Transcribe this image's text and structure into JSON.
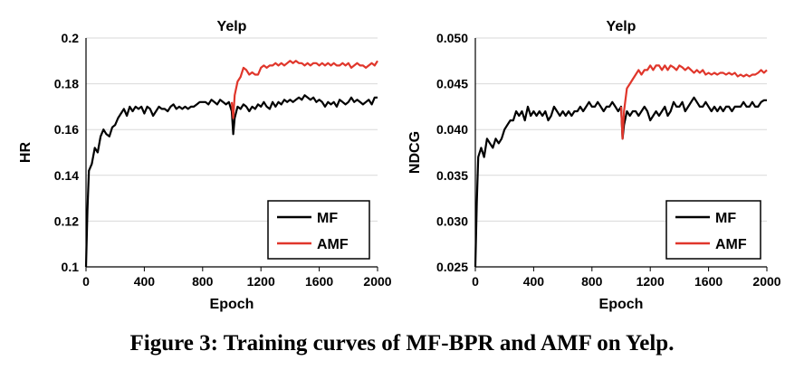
{
  "caption": "Figure 3: Training curves of MF-BPR and AMF on Yelp.",
  "colors": {
    "MF": "#000000",
    "AMF": "#e0362b",
    "grid": "#d9d9d9"
  },
  "chart_data": [
    {
      "type": "line",
      "title": "Yelp",
      "xlabel": "Epoch",
      "ylabel": "HR",
      "xlim": [
        0,
        2000
      ],
      "ylim": [
        0.1,
        0.2
      ],
      "xticks": [
        "0",
        "400",
        "800",
        "1200",
        "1600",
        "2000"
      ],
      "yticks": [
        "0.1",
        "0.12",
        "0.14",
        "0.16",
        "0.18",
        "0.2"
      ],
      "grid": true,
      "legend_position": "lower-right",
      "series": [
        {
          "name": "MF",
          "color": "#000000",
          "x": [
            0,
            10,
            20,
            40,
            60,
            80,
            100,
            120,
            140,
            160,
            180,
            200,
            220,
            240,
            260,
            280,
            300,
            320,
            340,
            360,
            380,
            400,
            420,
            440,
            460,
            480,
            500,
            520,
            540,
            560,
            580,
            600,
            620,
            640,
            660,
            680,
            700,
            720,
            740,
            760,
            780,
            800,
            820,
            840,
            860,
            880,
            900,
            920,
            940,
            960,
            980,
            1000,
            1010,
            1020,
            1040,
            1060,
            1080,
            1100,
            1120,
            1140,
            1160,
            1180,
            1200,
            1220,
            1240,
            1260,
            1280,
            1300,
            1320,
            1340,
            1360,
            1380,
            1400,
            1420,
            1440,
            1460,
            1480,
            1500,
            1520,
            1540,
            1560,
            1580,
            1600,
            1620,
            1640,
            1660,
            1680,
            1700,
            1720,
            1740,
            1760,
            1780,
            1800,
            1820,
            1840,
            1860,
            1880,
            1900,
            1920,
            1940,
            1960,
            1980,
            2000
          ],
          "y": [
            0.1,
            0.125,
            0.142,
            0.145,
            0.152,
            0.15,
            0.157,
            0.16,
            0.158,
            0.157,
            0.161,
            0.162,
            0.165,
            0.167,
            0.169,
            0.166,
            0.17,
            0.168,
            0.17,
            0.169,
            0.17,
            0.167,
            0.17,
            0.169,
            0.166,
            0.168,
            0.17,
            0.169,
            0.169,
            0.168,
            0.17,
            0.171,
            0.169,
            0.17,
            0.169,
            0.17,
            0.169,
            0.17,
            0.17,
            0.171,
            0.172,
            0.172,
            0.172,
            0.171,
            0.173,
            0.172,
            0.171,
            0.173,
            0.172,
            0.171,
            0.172,
            0.168,
            0.158,
            0.165,
            0.17,
            0.169,
            0.171,
            0.17,
            0.168,
            0.17,
            0.169,
            0.171,
            0.17,
            0.172,
            0.17,
            0.169,
            0.172,
            0.17,
            0.172,
            0.171,
            0.173,
            0.172,
            0.173,
            0.172,
            0.173,
            0.174,
            0.173,
            0.175,
            0.174,
            0.173,
            0.174,
            0.172,
            0.173,
            0.172,
            0.17,
            0.172,
            0.171,
            0.172,
            0.17,
            0.173,
            0.172,
            0.171,
            0.172,
            0.174,
            0.172,
            0.173,
            0.172,
            0.171,
            0.172,
            0.173,
            0.171,
            0.174,
            0.174
          ]
        },
        {
          "name": "AMF",
          "color": "#e0362b",
          "x": [
            1000,
            1010,
            1020,
            1040,
            1060,
            1080,
            1100,
            1120,
            1140,
            1160,
            1180,
            1200,
            1220,
            1240,
            1260,
            1280,
            1300,
            1320,
            1340,
            1360,
            1380,
            1400,
            1420,
            1440,
            1460,
            1480,
            1500,
            1520,
            1540,
            1560,
            1580,
            1600,
            1620,
            1640,
            1660,
            1680,
            1700,
            1720,
            1740,
            1760,
            1780,
            1800,
            1820,
            1840,
            1860,
            1880,
            1900,
            1920,
            1940,
            1960,
            1980,
            2000
          ],
          "y": [
            0.172,
            0.165,
            0.175,
            0.181,
            0.183,
            0.187,
            0.186,
            0.184,
            0.185,
            0.184,
            0.184,
            0.187,
            0.188,
            0.187,
            0.188,
            0.188,
            0.189,
            0.188,
            0.189,
            0.188,
            0.189,
            0.19,
            0.189,
            0.19,
            0.189,
            0.189,
            0.188,
            0.189,
            0.188,
            0.189,
            0.189,
            0.188,
            0.189,
            0.188,
            0.189,
            0.188,
            0.189,
            0.188,
            0.188,
            0.189,
            0.188,
            0.189,
            0.187,
            0.188,
            0.189,
            0.188,
            0.188,
            0.187,
            0.188,
            0.189,
            0.188,
            0.19
          ]
        }
      ]
    },
    {
      "type": "line",
      "title": "Yelp",
      "xlabel": "Epoch",
      "ylabel": "NDCG",
      "xlim": [
        0,
        2000
      ],
      "ylim": [
        0.025,
        0.05
      ],
      "xticks": [
        "0",
        "400",
        "800",
        "1200",
        "1600",
        "2000"
      ],
      "yticks": [
        "0.025",
        "0.030",
        "0.035",
        "0.040",
        "0.045",
        "0.050"
      ],
      "grid": true,
      "legend_position": "lower-right",
      "series": [
        {
          "name": "MF",
          "color": "#000000",
          "x": [
            0,
            10,
            20,
            40,
            60,
            80,
            100,
            120,
            140,
            160,
            180,
            200,
            220,
            240,
            260,
            280,
            300,
            320,
            340,
            360,
            380,
            400,
            420,
            440,
            460,
            480,
            500,
            520,
            540,
            560,
            580,
            600,
            620,
            640,
            660,
            680,
            700,
            720,
            740,
            760,
            780,
            800,
            820,
            840,
            860,
            880,
            900,
            920,
            940,
            960,
            980,
            1000,
            1010,
            1020,
            1040,
            1060,
            1080,
            1100,
            1120,
            1140,
            1160,
            1180,
            1200,
            1220,
            1240,
            1260,
            1280,
            1300,
            1320,
            1340,
            1360,
            1380,
            1400,
            1420,
            1440,
            1460,
            1480,
            1500,
            1520,
            1540,
            1560,
            1580,
            1600,
            1620,
            1640,
            1660,
            1680,
            1700,
            1720,
            1740,
            1760,
            1780,
            1800,
            1820,
            1840,
            1860,
            1880,
            1900,
            1920,
            1940,
            1960,
            1980,
            2000
          ],
          "y": [
            0.025,
            0.032,
            0.037,
            0.038,
            0.037,
            0.039,
            0.0385,
            0.038,
            0.039,
            0.0385,
            0.039,
            0.04,
            0.0405,
            0.041,
            0.041,
            0.042,
            0.0415,
            0.042,
            0.041,
            0.0425,
            0.0415,
            0.042,
            0.0415,
            0.042,
            0.0415,
            0.042,
            0.041,
            0.0415,
            0.0425,
            0.042,
            0.0415,
            0.042,
            0.0415,
            0.042,
            0.0415,
            0.042,
            0.042,
            0.0425,
            0.042,
            0.0425,
            0.043,
            0.0425,
            0.0425,
            0.043,
            0.0425,
            0.042,
            0.0425,
            0.0425,
            0.043,
            0.0425,
            0.042,
            0.0425,
            0.039,
            0.0405,
            0.042,
            0.0415,
            0.042,
            0.042,
            0.0415,
            0.042,
            0.0425,
            0.042,
            0.041,
            0.0415,
            0.042,
            0.0415,
            0.042,
            0.0425,
            0.0415,
            0.042,
            0.043,
            0.0425,
            0.0425,
            0.043,
            0.042,
            0.0425,
            0.043,
            0.0435,
            0.043,
            0.0425,
            0.0425,
            0.043,
            0.0425,
            0.042,
            0.0425,
            0.042,
            0.0425,
            0.042,
            0.0425,
            0.0425,
            0.042,
            0.0425,
            0.0425,
            0.0425,
            0.043,
            0.0425,
            0.0425,
            0.043,
            0.0425,
            0.0425,
            0.043,
            0.0432,
            0.0432
          ]
        },
        {
          "name": "AMF",
          "color": "#e0362b",
          "x": [
            1000,
            1010,
            1020,
            1040,
            1060,
            1080,
            1100,
            1120,
            1140,
            1160,
            1180,
            1200,
            1220,
            1240,
            1260,
            1280,
            1300,
            1320,
            1340,
            1360,
            1380,
            1400,
            1420,
            1440,
            1460,
            1480,
            1500,
            1520,
            1540,
            1560,
            1580,
            1600,
            1620,
            1640,
            1660,
            1680,
            1700,
            1720,
            1740,
            1760,
            1780,
            1800,
            1820,
            1840,
            1860,
            1880,
            1900,
            1920,
            1940,
            1960,
            1980,
            2000
          ],
          "y": [
            0.0425,
            0.039,
            0.042,
            0.0445,
            0.045,
            0.0455,
            0.046,
            0.0465,
            0.046,
            0.0465,
            0.0465,
            0.047,
            0.0465,
            0.047,
            0.047,
            0.0465,
            0.047,
            0.0465,
            0.047,
            0.0468,
            0.0465,
            0.047,
            0.0468,
            0.0465,
            0.0468,
            0.0465,
            0.0462,
            0.0465,
            0.0462,
            0.0465,
            0.046,
            0.0462,
            0.046,
            0.0462,
            0.046,
            0.0462,
            0.0462,
            0.046,
            0.0462,
            0.046,
            0.0462,
            0.0458,
            0.046,
            0.0458,
            0.046,
            0.0458,
            0.046,
            0.046,
            0.0462,
            0.0465,
            0.0462,
            0.0465
          ]
        }
      ]
    }
  ]
}
